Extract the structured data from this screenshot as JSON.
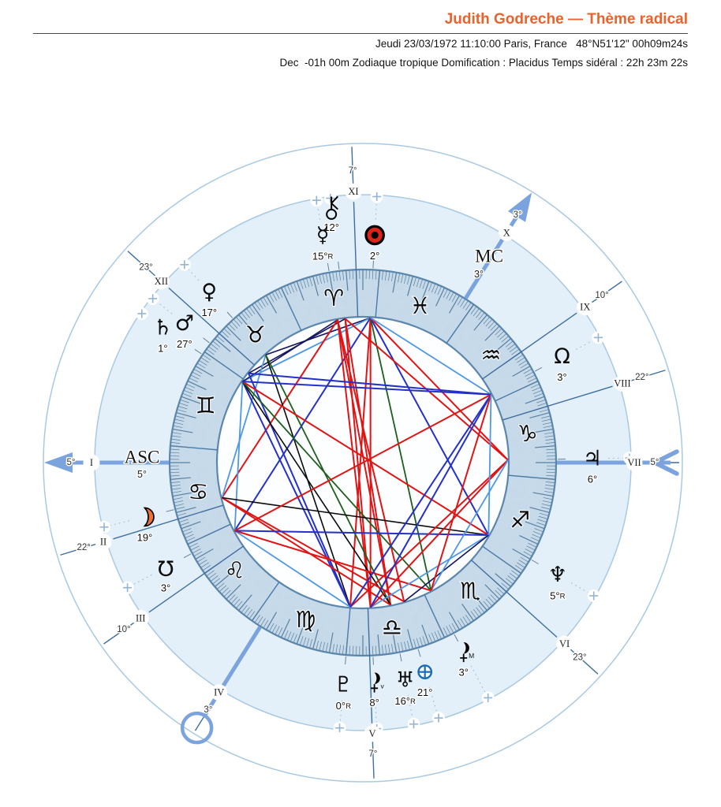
{
  "header": {
    "title": "Judith Godreche — Thème radical",
    "info_line1": "Jeudi 23/03/1972 11:10:00 Paris, France   48°N51'12\" 00h09m24s",
    "info_line2": "Dec  -01h 00m Zodiaque tropique Domification : Placidus Temps sidéral : 22h 23m 22s"
  },
  "colors": {
    "title_accent": "#e8632e",
    "ring_fill": "#c9dcec",
    "band_fill": "#e3f0f9",
    "inner_fill": "#fdfeff",
    "ring_border": "#5c87ad",
    "tick": "#58809f",
    "faint_circle": "#a9c9e2",
    "house_line": "#3f6f9e",
    "axis_blue": "#7ba3dd",
    "dotted": "#9db8d0",
    "plus_marker": "#92b4d6",
    "sun_red": "#e02318",
    "moon_orange": "#ee7233",
    "fortune_blue": "#1a6db8"
  },
  "chart_data": {
    "type": "radial-natal-chart",
    "description": "Natal wheel, tropical zodiac, Placidus houses; Ascendant 5° Cancer on the left, longitudes increase counter-clockwise",
    "ascendant_longitude": 95,
    "zodiac_signs": [
      {
        "name": "aries",
        "glyph": "♈"
      },
      {
        "name": "taurus",
        "glyph": "♉"
      },
      {
        "name": "gemini",
        "glyph": "♊"
      },
      {
        "name": "cancer",
        "glyph": "♋"
      },
      {
        "name": "leo",
        "glyph": "♌"
      },
      {
        "name": "virgo",
        "glyph": "♍"
      },
      {
        "name": "libra",
        "glyph": "♎"
      },
      {
        "name": "scorpio",
        "glyph": "♏"
      },
      {
        "name": "sagittarius",
        "glyph": "♐"
      },
      {
        "name": "capricorn",
        "glyph": "♑"
      },
      {
        "name": "aquarius",
        "glyph": "♒"
      },
      {
        "name": "pisces",
        "glyph": "♓"
      }
    ],
    "houses": [
      {
        "numeral": "I",
        "degree_label": "5°",
        "longitude": 95,
        "angular": true
      },
      {
        "numeral": "II",
        "degree_label": "22°",
        "longitude": 112,
        "angular": false
      },
      {
        "numeral": "III",
        "degree_label": "10°",
        "longitude": 130,
        "angular": false
      },
      {
        "numeral": "IV",
        "degree_label": "3°",
        "longitude": 153,
        "angular": true
      },
      {
        "numeral": "V",
        "degree_label": "7°",
        "longitude": 187,
        "angular": false
      },
      {
        "numeral": "VI",
        "degree_label": "23°",
        "longitude": 233,
        "angular": false
      },
      {
        "numeral": "VII",
        "degree_label": "5°",
        "longitude": 275,
        "angular": true
      },
      {
        "numeral": "VIII",
        "degree_label": "22°",
        "longitude": 292,
        "angular": false
      },
      {
        "numeral": "IX",
        "degree_label": "10°",
        "longitude": 310,
        "angular": false
      },
      {
        "numeral": "X",
        "degree_label": "3°",
        "longitude": 333,
        "angular": true
      },
      {
        "numeral": "XI",
        "degree_label": "7°",
        "longitude": 7,
        "angular": false
      },
      {
        "numeral": "XII",
        "degree_label": "23°",
        "longitude": 53,
        "angular": false
      }
    ],
    "points": [
      {
        "id": "sun",
        "name": "Soleil",
        "degree_label": "2°",
        "sign": "Aries",
        "longitude": 2,
        "display_radius": 289
      },
      {
        "id": "chiron",
        "name": "Chiron",
        "degree_label": "12°",
        "sign": "Aries",
        "longitude": 12,
        "display_radius": 327
      },
      {
        "id": "mercury",
        "name": "Mercure",
        "degree_label": "15°R",
        "sign": "Aries",
        "longitude": 15,
        "display_radius": 293,
        "glyph": "☿"
      },
      {
        "id": "venus",
        "name": "Vénus",
        "degree_label": "17°",
        "sign": "Taurus",
        "longitude": 47,
        "display_radius": 291,
        "glyph": "♀"
      },
      {
        "id": "mars",
        "name": "Mars",
        "degree_label": "27°",
        "sign": "Taurus",
        "longitude": 57,
        "display_radius": 287,
        "glyph": "♂"
      },
      {
        "id": "saturn",
        "name": "Saturne",
        "degree_label": "1°",
        "sign": "Gemini",
        "longitude": 61,
        "display_radius": 306,
        "glyph": "♄"
      },
      {
        "id": "moon",
        "name": "Lune",
        "degree_label": "19°",
        "sign": "Cancer",
        "longitude": 109,
        "display_radius": 285
      },
      {
        "id": "south_node",
        "name": "Nœud Sud",
        "degree_label": "3°",
        "sign": "Leo",
        "longitude": 123,
        "display_radius": 283
      },
      {
        "id": "pluto",
        "name": "Pluton",
        "degree_label": "0°R",
        "sign": "Libra",
        "longitude": 180,
        "display_radius": 283,
        "glyph": "♇"
      },
      {
        "id": "lilith_true",
        "name": "Lune Noire v",
        "degree_label": "8°",
        "sign": "Libra",
        "longitude": 188,
        "display_radius": 279,
        "sub": "v"
      },
      {
        "id": "uranus",
        "name": "Uranus",
        "degree_label": "16°R",
        "sign": "Libra",
        "longitude": 196,
        "display_radius": 281,
        "glyph": "♅"
      },
      {
        "id": "part_of_fortune",
        "name": "Part Fortune",
        "degree_label": "21°",
        "sign": "Libra",
        "longitude": 201.5,
        "display_radius": 277
      },
      {
        "id": "lilith_mean",
        "name": "Lune Noire M",
        "degree_label": "3°",
        "sign": "Scorpio",
        "longitude": 213,
        "display_radius": 272,
        "sub": "M"
      },
      {
        "id": "neptune",
        "name": "Neptune",
        "degree_label": "5°R",
        "sign": "Sagittarius",
        "longitude": 245,
        "display_radius": 285,
        "glyph": "♆"
      },
      {
        "id": "jupiter",
        "name": "Jupiter",
        "degree_label": "6°",
        "sign": "Capricorn",
        "longitude": 276,
        "display_radius": 291,
        "glyph": "♃"
      },
      {
        "id": "north_node",
        "name": "Nœud Nord",
        "degree_label": "3°",
        "sign": "Aquarius",
        "longitude": 303,
        "display_radius": 286
      }
    ],
    "axes": {
      "asc_label": "ASC",
      "asc_degree": "5°",
      "mc_label": "MC",
      "mc_degree": "3°"
    },
    "aspect_types": [
      {
        "name": "opposition",
        "angle": 180,
        "orb": 7,
        "color": "#e01414",
        "width": 2.0
      },
      {
        "name": "trine",
        "angle": 120,
        "orb": 6,
        "color": "#2430c8",
        "width": 2.0
      },
      {
        "name": "square",
        "angle": 90,
        "orb": 6,
        "color": "#e01414",
        "width": 2.0
      },
      {
        "name": "sextile",
        "angle": 60,
        "orb": 4,
        "color": "#4e97e6",
        "width": 1.8
      },
      {
        "name": "quincunx",
        "angle": 150,
        "orb": 2.5,
        "color": "#1d5e1d",
        "width": 1.8
      },
      {
        "name": "sesquiquadrate",
        "angle": 135,
        "orb": 2.5,
        "color": "#0a0a0a",
        "width": 1.6
      },
      {
        "name": "semisquare",
        "angle": 45,
        "orb": 2.5,
        "color": "#15155e",
        "width": 1.6
      }
    ]
  }
}
